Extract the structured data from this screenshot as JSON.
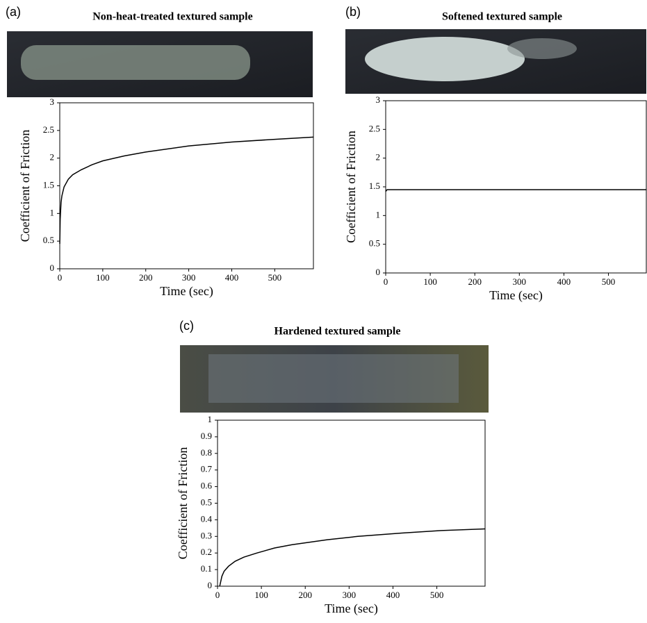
{
  "chart_data": [
    {
      "type": "line",
      "panel_label": "(a)",
      "title": "Non-heat-treated textured sample",
      "x_label": "Time (sec)",
      "y_label": "Coefficient of Friction",
      "color": "#000000",
      "x": [
        0,
        1,
        3,
        5,
        10,
        20,
        30,
        50,
        75,
        100,
        150,
        200,
        300,
        400,
        500,
        590
      ],
      "values": [
        0.45,
        0.9,
        1.2,
        1.32,
        1.48,
        1.62,
        1.7,
        1.79,
        1.88,
        1.95,
        2.04,
        2.11,
        2.22,
        2.29,
        2.34,
        2.38
      ],
      "xlim": [
        0,
        590
      ],
      "xticks": [
        0,
        100,
        200,
        300,
        400,
        500
      ],
      "ylim": [
        0,
        3
      ],
      "yticks": [
        0,
        0.5,
        1,
        1.5,
        2,
        2.5,
        3
      ]
    },
    {
      "type": "line",
      "panel_label": "(b)",
      "title": "Softened textured sample",
      "x_label": "Time (sec)",
      "y_label": "Coefficient of Friction",
      "color": "#000000",
      "x": [
        0,
        3,
        585
      ],
      "values": [
        1.42,
        1.45,
        1.45
      ],
      "xlim": [
        0,
        585
      ],
      "xticks": [
        0,
        100,
        200,
        300,
        400,
        500
      ],
      "ylim": [
        0,
        3
      ],
      "yticks": [
        0,
        0.5,
        1,
        1.5,
        2,
        2.5,
        3
      ]
    },
    {
      "type": "line",
      "panel_label": "(c)",
      "title": "Hardened textured sample",
      "x_label": "Time (sec)",
      "y_label": "Coefficient of Friction",
      "color": "#000000",
      "x": [
        5,
        10,
        15,
        25,
        40,
        60,
        90,
        130,
        170,
        250,
        320,
        420,
        510,
        610
      ],
      "values": [
        0,
        0.06,
        0.09,
        0.12,
        0.15,
        0.175,
        0.2,
        0.23,
        0.25,
        0.28,
        0.3,
        0.32,
        0.335,
        0.345
      ],
      "xlim": [
        0,
        610
      ],
      "xticks": [
        0,
        100,
        200,
        300,
        400,
        500
      ],
      "ylim": [
        0,
        1
      ],
      "yticks": [
        0,
        0.1,
        0.2,
        0.3,
        0.4,
        0.5,
        0.6,
        0.7,
        0.8,
        0.9,
        1
      ]
    }
  ]
}
